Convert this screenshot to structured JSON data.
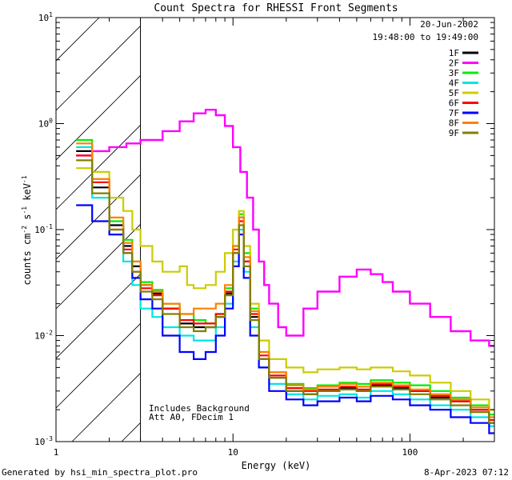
{
  "chart_data": {
    "type": "line",
    "title": "Count Spectra for RHESSI Front Segments",
    "xlabel": "Energy (keV)",
    "ylabel": "counts cm^-2 s^-1 keV^-1",
    "xscale": "log",
    "yscale": "log",
    "xlim": [
      1,
      300
    ],
    "ylim": [
      0.001,
      10
    ],
    "x_ticks": [
      {
        "v": 1,
        "label": "1"
      },
      {
        "v": 10,
        "label": "10"
      },
      {
        "v": 100,
        "label": "100"
      }
    ],
    "y_ticks": [
      {
        "v": 0.001,
        "base": "10",
        "exp": "-3"
      },
      {
        "v": 0.01,
        "base": "10",
        "exp": "-2"
      },
      {
        "v": 0.1,
        "base": "10",
        "exp": "-1"
      },
      {
        "v": 1,
        "base": "10",
        "exp": "0"
      },
      {
        "v": 10,
        "base": "10",
        "exp": "1"
      }
    ],
    "attenuator_limit_keV": 3,
    "legend": {
      "position": "top-right",
      "date": "20-Jun-2002",
      "time_range": "19:48:00 to 19:49:00"
    },
    "annotation": [
      "Includes Background",
      "Att A0, FDecim 1"
    ],
    "series": [
      {
        "name": "1F",
        "color": "#000000",
        "points": [
          [
            1.3,
            0.55
          ],
          [
            1.6,
            0.25
          ],
          [
            2.0,
            0.11
          ],
          [
            2.4,
            0.07
          ],
          [
            2.7,
            0.045
          ],
          [
            3.0,
            0.03
          ],
          [
            3.5,
            0.025
          ],
          [
            4.0,
            0.018
          ],
          [
            5.0,
            0.013
          ],
          [
            6.0,
            0.012
          ],
          [
            7.0,
            0.012
          ],
          [
            8.0,
            0.015
          ],
          [
            9.0,
            0.025
          ],
          [
            10.0,
            0.06
          ],
          [
            10.8,
            0.13
          ],
          [
            11.5,
            0.05
          ],
          [
            12.5,
            0.015
          ],
          [
            14,
            0.006
          ],
          [
            16,
            0.004
          ],
          [
            20,
            0.003
          ],
          [
            25,
            0.0028
          ],
          [
            30,
            0.003
          ],
          [
            40,
            0.0032
          ],
          [
            50,
            0.003
          ],
          [
            60,
            0.0034
          ],
          [
            80,
            0.0032
          ],
          [
            100,
            0.003
          ],
          [
            130,
            0.0026
          ],
          [
            170,
            0.0024
          ],
          [
            220,
            0.002
          ],
          [
            280,
            0.0015
          ]
        ]
      },
      {
        "name": "2F",
        "color": "#ff00ff",
        "points": [
          [
            1.3,
            0.5
          ],
          [
            1.6,
            0.55
          ],
          [
            2.0,
            0.6
          ],
          [
            2.5,
            0.65
          ],
          [
            3.0,
            0.7
          ],
          [
            4.0,
            0.85
          ],
          [
            5.0,
            1.05
          ],
          [
            6.0,
            1.25
          ],
          [
            7.0,
            1.35
          ],
          [
            8.0,
            1.2
          ],
          [
            9.0,
            0.95
          ],
          [
            10.0,
            0.6
          ],
          [
            11.0,
            0.35
          ],
          [
            12.0,
            0.2
          ],
          [
            13.0,
            0.1
          ],
          [
            14,
            0.05
          ],
          [
            15,
            0.03
          ],
          [
            16,
            0.02
          ],
          [
            18,
            0.012
          ],
          [
            20,
            0.01
          ],
          [
            25,
            0.018
          ],
          [
            30,
            0.026
          ],
          [
            40,
            0.036
          ],
          [
            50,
            0.042
          ],
          [
            60,
            0.038
          ],
          [
            70,
            0.032
          ],
          [
            80,
            0.026
          ],
          [
            100,
            0.02
          ],
          [
            130,
            0.015
          ],
          [
            170,
            0.011
          ],
          [
            220,
            0.009
          ],
          [
            280,
            0.008
          ]
        ]
      },
      {
        "name": "3F",
        "color": "#00ee00",
        "points": [
          [
            1.3,
            0.7
          ],
          [
            1.6,
            0.3
          ],
          [
            2.0,
            0.12
          ],
          [
            2.4,
            0.08
          ],
          [
            2.7,
            0.05
          ],
          [
            3.0,
            0.032
          ],
          [
            3.5,
            0.027
          ],
          [
            4.0,
            0.02
          ],
          [
            5.0,
            0.016
          ],
          [
            6.0,
            0.014
          ],
          [
            7.0,
            0.013
          ],
          [
            8.0,
            0.016
          ],
          [
            9.0,
            0.028
          ],
          [
            10.0,
            0.07
          ],
          [
            10.8,
            0.14
          ],
          [
            11.5,
            0.06
          ],
          [
            12.5,
            0.018
          ],
          [
            14,
            0.007
          ],
          [
            16,
            0.0045
          ],
          [
            20,
            0.0035
          ],
          [
            25,
            0.0032
          ],
          [
            30,
            0.0034
          ],
          [
            40,
            0.0036
          ],
          [
            50,
            0.0035
          ],
          [
            60,
            0.0038
          ],
          [
            80,
            0.0036
          ],
          [
            100,
            0.0034
          ],
          [
            130,
            0.003
          ],
          [
            170,
            0.0026
          ],
          [
            220,
            0.0022
          ],
          [
            280,
            0.0018
          ]
        ]
      },
      {
        "name": "4F",
        "color": "#00e5e5",
        "points": [
          [
            1.3,
            0.6
          ],
          [
            1.6,
            0.2
          ],
          [
            2.0,
            0.09
          ],
          [
            2.4,
            0.05
          ],
          [
            2.7,
            0.03
          ],
          [
            3.0,
            0.018
          ],
          [
            3.5,
            0.015
          ],
          [
            4.0,
            0.012
          ],
          [
            5.0,
            0.01
          ],
          [
            6.0,
            0.009
          ],
          [
            7.0,
            0.009
          ],
          [
            8.0,
            0.012
          ],
          [
            9.0,
            0.02
          ],
          [
            10.0,
            0.05
          ],
          [
            10.8,
            0.1
          ],
          [
            11.5,
            0.04
          ],
          [
            12.5,
            0.012
          ],
          [
            14,
            0.005
          ],
          [
            16,
            0.0035
          ],
          [
            20,
            0.0028
          ],
          [
            25,
            0.0025
          ],
          [
            30,
            0.0027
          ],
          [
            40,
            0.0028
          ],
          [
            50,
            0.0026
          ],
          [
            60,
            0.003
          ],
          [
            80,
            0.0028
          ],
          [
            100,
            0.0025
          ],
          [
            130,
            0.0022
          ],
          [
            170,
            0.002
          ],
          [
            220,
            0.0017
          ],
          [
            280,
            0.0014
          ]
        ]
      },
      {
        "name": "5F",
        "color": "#cccc00",
        "points": [
          [
            1.3,
            0.38
          ],
          [
            1.6,
            0.35
          ],
          [
            2.0,
            0.2
          ],
          [
            2.4,
            0.15
          ],
          [
            2.7,
            0.1
          ],
          [
            3.0,
            0.07
          ],
          [
            3.5,
            0.05
          ],
          [
            4.0,
            0.04
          ],
          [
            5.0,
            0.045
          ],
          [
            5.5,
            0.03
          ],
          [
            6.0,
            0.028
          ],
          [
            7.0,
            0.03
          ],
          [
            8.0,
            0.04
          ],
          [
            9.0,
            0.06
          ],
          [
            10.0,
            0.1
          ],
          [
            10.8,
            0.15
          ],
          [
            11.5,
            0.07
          ],
          [
            12.5,
            0.02
          ],
          [
            14,
            0.009
          ],
          [
            16,
            0.006
          ],
          [
            20,
            0.005
          ],
          [
            25,
            0.0045
          ],
          [
            30,
            0.0048
          ],
          [
            40,
            0.005
          ],
          [
            50,
            0.0048
          ],
          [
            60,
            0.005
          ],
          [
            80,
            0.0046
          ],
          [
            100,
            0.0042
          ],
          [
            130,
            0.0036
          ],
          [
            170,
            0.003
          ],
          [
            220,
            0.0025
          ],
          [
            280,
            0.002
          ]
        ]
      },
      {
        "name": "6F",
        "color": "#ff0000",
        "points": [
          [
            1.3,
            0.5
          ],
          [
            1.6,
            0.28
          ],
          [
            2.0,
            0.1
          ],
          [
            2.4,
            0.065
          ],
          [
            2.7,
            0.04
          ],
          [
            3.0,
            0.028
          ],
          [
            3.5,
            0.024
          ],
          [
            4.0,
            0.018
          ],
          [
            5.0,
            0.014
          ],
          [
            6.0,
            0.013
          ],
          [
            7.0,
            0.013
          ],
          [
            8.0,
            0.016
          ],
          [
            9.0,
            0.026
          ],
          [
            10.0,
            0.065
          ],
          [
            10.8,
            0.12
          ],
          [
            11.5,
            0.05
          ],
          [
            12.5,
            0.016
          ],
          [
            14,
            0.0065
          ],
          [
            16,
            0.0042
          ],
          [
            20,
            0.0032
          ],
          [
            25,
            0.003
          ],
          [
            30,
            0.0031
          ],
          [
            40,
            0.0033
          ],
          [
            50,
            0.0031
          ],
          [
            60,
            0.0035
          ],
          [
            80,
            0.0033
          ],
          [
            100,
            0.003
          ],
          [
            130,
            0.0027
          ],
          [
            170,
            0.0024
          ],
          [
            220,
            0.002
          ],
          [
            280,
            0.0016
          ]
        ]
      },
      {
        "name": "7F",
        "color": "#0000ff",
        "points": [
          [
            1.3,
            0.17
          ],
          [
            1.6,
            0.12
          ],
          [
            2.0,
            0.09
          ],
          [
            2.4,
            0.06
          ],
          [
            2.7,
            0.035
          ],
          [
            3.0,
            0.022
          ],
          [
            3.5,
            0.018
          ],
          [
            4.0,
            0.01
          ],
          [
            5.0,
            0.007
          ],
          [
            6.0,
            0.006
          ],
          [
            7.0,
            0.007
          ],
          [
            8.0,
            0.01
          ],
          [
            9.0,
            0.018
          ],
          [
            10.0,
            0.045
          ],
          [
            10.8,
            0.09
          ],
          [
            11.5,
            0.035
          ],
          [
            12.5,
            0.01
          ],
          [
            14,
            0.005
          ],
          [
            16,
            0.003
          ],
          [
            20,
            0.0025
          ],
          [
            25,
            0.0022
          ],
          [
            30,
            0.0024
          ],
          [
            40,
            0.0026
          ],
          [
            50,
            0.0024
          ],
          [
            60,
            0.0027
          ],
          [
            80,
            0.0025
          ],
          [
            100,
            0.0022
          ],
          [
            130,
            0.002
          ],
          [
            170,
            0.0017
          ],
          [
            220,
            0.0015
          ],
          [
            280,
            0.0012
          ]
        ]
      },
      {
        "name": "8F",
        "color": "#ff8000",
        "points": [
          [
            1.3,
            0.65
          ],
          [
            1.6,
            0.3
          ],
          [
            2.0,
            0.13
          ],
          [
            2.4,
            0.075
          ],
          [
            2.7,
            0.05
          ],
          [
            3.0,
            0.03
          ],
          [
            3.5,
            0.026
          ],
          [
            4.0,
            0.02
          ],
          [
            5.0,
            0.016
          ],
          [
            6.0,
            0.018
          ],
          [
            7.0,
            0.018
          ],
          [
            8.0,
            0.02
          ],
          [
            9.0,
            0.03
          ],
          [
            10.0,
            0.07
          ],
          [
            10.8,
            0.13
          ],
          [
            11.5,
            0.055
          ],
          [
            12.5,
            0.017
          ],
          [
            14,
            0.007
          ],
          [
            16,
            0.0045
          ],
          [
            20,
            0.0034
          ],
          [
            25,
            0.0031
          ],
          [
            30,
            0.0033
          ],
          [
            40,
            0.0035
          ],
          [
            50,
            0.0033
          ],
          [
            60,
            0.0036
          ],
          [
            80,
            0.0034
          ],
          [
            100,
            0.0031
          ],
          [
            130,
            0.0028
          ],
          [
            170,
            0.0025
          ],
          [
            220,
            0.0021
          ],
          [
            280,
            0.0017
          ]
        ]
      },
      {
        "name": "9F",
        "color": "#808000",
        "points": [
          [
            1.3,
            0.45
          ],
          [
            1.6,
            0.22
          ],
          [
            2.0,
            0.1
          ],
          [
            2.4,
            0.06
          ],
          [
            2.7,
            0.04
          ],
          [
            3.0,
            0.026
          ],
          [
            3.5,
            0.022
          ],
          [
            4.0,
            0.016
          ],
          [
            5.0,
            0.012
          ],
          [
            6.0,
            0.011
          ],
          [
            7.0,
            0.012
          ],
          [
            8.0,
            0.015
          ],
          [
            9.0,
            0.024
          ],
          [
            10.0,
            0.06
          ],
          [
            10.8,
            0.11
          ],
          [
            11.5,
            0.045
          ],
          [
            12.5,
            0.014
          ],
          [
            14,
            0.006
          ],
          [
            16,
            0.004
          ],
          [
            20,
            0.003
          ],
          [
            25,
            0.0028
          ],
          [
            30,
            0.003
          ],
          [
            40,
            0.0031
          ],
          [
            50,
            0.003
          ],
          [
            60,
            0.0033
          ],
          [
            80,
            0.0031
          ],
          [
            100,
            0.0028
          ],
          [
            130,
            0.0025
          ],
          [
            170,
            0.0022
          ],
          [
            220,
            0.0019
          ],
          [
            280,
            0.0015
          ]
        ]
      }
    ]
  },
  "footer": {
    "generated_by": "Generated by hsi_min_spectra_plot.pro",
    "timestamp": "8-Apr-2023 07:12"
  }
}
